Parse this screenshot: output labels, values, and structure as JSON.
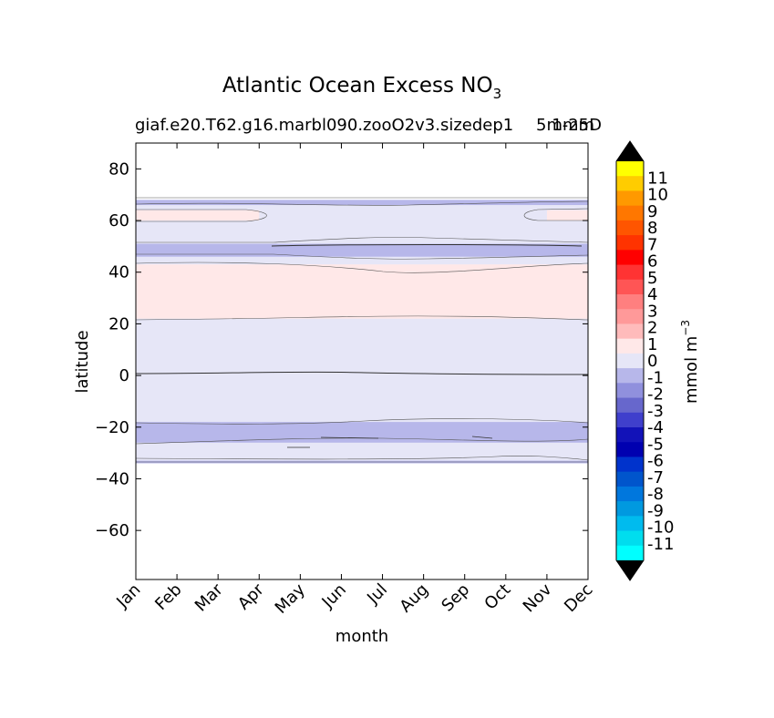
{
  "chart_data": {
    "type": "contour",
    "title": "Atlantic Ocean Excess NO",
    "title_subscript": "3",
    "subtitle_left": "giaf.e20.T62.g16.marbl090.zooO2v3.sizedep1",
    "subtitle_right": "1-25D",
    "subtitle_overlap": "5mmm",
    "xlabel": "month",
    "ylabel": "latitude",
    "x_categories": [
      "Jan",
      "Feb",
      "Mar",
      "Apr",
      "May",
      "Jun",
      "Jul",
      "Aug",
      "Sep",
      "Oct",
      "Nov",
      "Dec"
    ],
    "ylim": [
      -79,
      90
    ],
    "y_ticks": [
      80,
      60,
      40,
      20,
      0,
      -20,
      -40,
      -60
    ],
    "y_tick_labels": [
      "80",
      "60",
      "40",
      "20",
      "0",
      "−20",
      "−40",
      "−60"
    ],
    "colorbar": {
      "label": "mmol m",
      "label_superscript": "−3",
      "levels": [
        "11",
        "10",
        "9",
        "8",
        "7",
        "6",
        "5",
        "4",
        "3",
        "2",
        "1",
        "0",
        "-1",
        "-2",
        "-3",
        "-4",
        "-5",
        "-6",
        "-7",
        "-8",
        "-9",
        "-10",
        "-11"
      ],
      "colors": [
        "#ffff00",
        "#ffcc00",
        "#ff9900",
        "#ff7700",
        "#ff5500",
        "#ff3300",
        "#ff0000",
        "#ff3333",
        "#ff5555",
        "#ff7f7f",
        "#ff9999",
        "#ffbbbb",
        "#ffe8e8",
        "#e6e6f7",
        "#b7b7ea",
        "#9090dd",
        "#6767cc",
        "#3f3fcc",
        "#1212b8",
        "#0000b0",
        "#0033cc",
        "#0055cc",
        "#0077dd",
        "#0099e0",
        "#00bbee",
        "#00ddee",
        "#00ffff"
      ],
      "extend_color": "#000000"
    },
    "bands": [
      {
        "level": "-1 to 0",
        "lat_range": [
          -34,
          68
        ],
        "color": "#e6e6f7"
      },
      {
        "level": "0 to 1",
        "lat_range": [
          22,
          43
        ],
        "color": "#ffe8e8"
      },
      {
        "level": "0 to 1",
        "lat_range": [
          60,
          64
        ],
        "months": [
          "Jan",
          "Apr"
        ],
        "color": "#ffe8e8"
      },
      {
        "level": "0 to 1",
        "lat_range": [
          60,
          64
        ],
        "months": [
          "Nov",
          "Dec"
        ],
        "color": "#ffe8e8"
      },
      {
        "level": "-2 to -1",
        "lat_range": [
          66,
          68
        ],
        "color": "#b7b7ea"
      },
      {
        "level": "-2 to -1",
        "lat_range": [
          46,
          51
        ],
        "color": "#b7b7ea"
      },
      {
        "level": "-2 to -1",
        "lat_range": [
          -26,
          -18
        ],
        "color": "#b7b7ea"
      },
      {
        "level": "-2 to -1",
        "lat_range": [
          -34,
          -33
        ],
        "color": "#b7b7ea"
      }
    ]
  }
}
